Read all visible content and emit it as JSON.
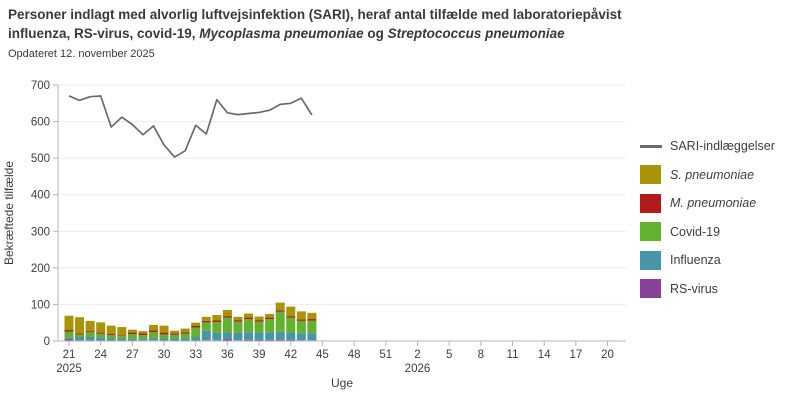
{
  "header": {
    "title_line1": "Personer indlagt med alvorlig luftvejsinfektion (SARI), heraf antal tilfælde med laboratoriepåvist",
    "title_line2_parts": [
      "influenza, RS-virus, covid-19, ",
      "Mycoplasma pneumoniae",
      " og ",
      "Streptococcus pneumoniae"
    ],
    "subtitle": "Opdateret 12. november 2025"
  },
  "legend": {
    "items": [
      {
        "label": "SARI-indlæggelser",
        "color": "#6b6b6b",
        "type": "line"
      },
      {
        "label": "S. pneumoniae",
        "color": "#a89408",
        "type": "box"
      },
      {
        "label": "M. pneumoniae",
        "color": "#b31b1b",
        "type": "box"
      },
      {
        "label": "Covid-19",
        "color": "#63b22e",
        "type": "box"
      },
      {
        "label": "Influenza",
        "color": "#4895a9",
        "type": "box"
      },
      {
        "label": "RS-virus",
        "color": "#874295",
        "type": "box"
      }
    ]
  },
  "chart_data": {
    "type": "bar",
    "stacked": true,
    "grid": true,
    "legend_position": "right",
    "weeks": [
      21,
      22,
      23,
      24,
      25,
      26,
      27,
      28,
      29,
      30,
      31,
      32,
      33,
      34,
      35,
      36,
      37,
      38,
      39,
      40,
      41,
      42,
      43,
      44
    ],
    "x_axis": {
      "label": "Uge",
      "ticks": [
        "21",
        "24",
        "27",
        "30",
        "33",
        "36",
        "39",
        "42",
        "45",
        "48",
        "51",
        "2",
        "5",
        "8",
        "11",
        "14",
        "17",
        "20"
      ],
      "year_labels": [
        {
          "tick_index": 0,
          "label": "2025"
        },
        {
          "tick_index": 11,
          "label": "2026"
        }
      ]
    },
    "y_axis": {
      "label": "Bekræftede tilfælde",
      "ylim": [
        0,
        700
      ],
      "ticks": [
        0,
        100,
        200,
        300,
        400,
        500,
        600,
        700
      ]
    },
    "line_series": {
      "name": "SARI-indlæggelser",
      "color": "#6b6b6b",
      "values": [
        670,
        658,
        668,
        670,
        585,
        612,
        592,
        564,
        588,
        536,
        503,
        520,
        590,
        566,
        660,
        624,
        619,
        622,
        625,
        631,
        647,
        650,
        664,
        618
      ]
    },
    "bar_series": [
      {
        "name": "RS-virus",
        "color": "#874295",
        "values": [
          5,
          1,
          1,
          1,
          1,
          1,
          1,
          2,
          2,
          1,
          1,
          1,
          1,
          2,
          2,
          4,
          2,
          3,
          3,
          3,
          3,
          3,
          2,
          2
        ]
      },
      {
        "name": "Influenza",
        "color": "#4895a9",
        "values": [
          4,
          10,
          10,
          9,
          7,
          6,
          5,
          5,
          6,
          6,
          6,
          6,
          10,
          26,
          20,
          19,
          20,
          21,
          20,
          21,
          22,
          20,
          19,
          19
        ]
      },
      {
        "name": "Covid-19",
        "color": "#63b22e",
        "values": [
          17,
          7,
          13,
          10,
          8,
          7,
          13,
          9,
          16,
          11,
          10,
          13,
          26,
          23,
          30,
          41,
          31,
          36,
          30,
          36,
          55,
          41,
          34,
          35
        ]
      },
      {
        "name": "M. pneumoniae",
        "color": "#b31b1b",
        "values": [
          4,
          3,
          3,
          3,
          3,
          2,
          4,
          5,
          5,
          5,
          4,
          4,
          4,
          4,
          4,
          4,
          4,
          4,
          4,
          4,
          4,
          4,
          4,
          4
        ]
      },
      {
        "name": "S. pneumoniae",
        "color": "#a89408",
        "values": [
          39,
          44,
          28,
          28,
          23,
          22,
          8,
          6,
          15,
          19,
          7,
          10,
          9,
          11,
          15,
          17,
          9,
          11,
          10,
          10,
          21,
          26,
          22,
          17
        ]
      }
    ]
  }
}
